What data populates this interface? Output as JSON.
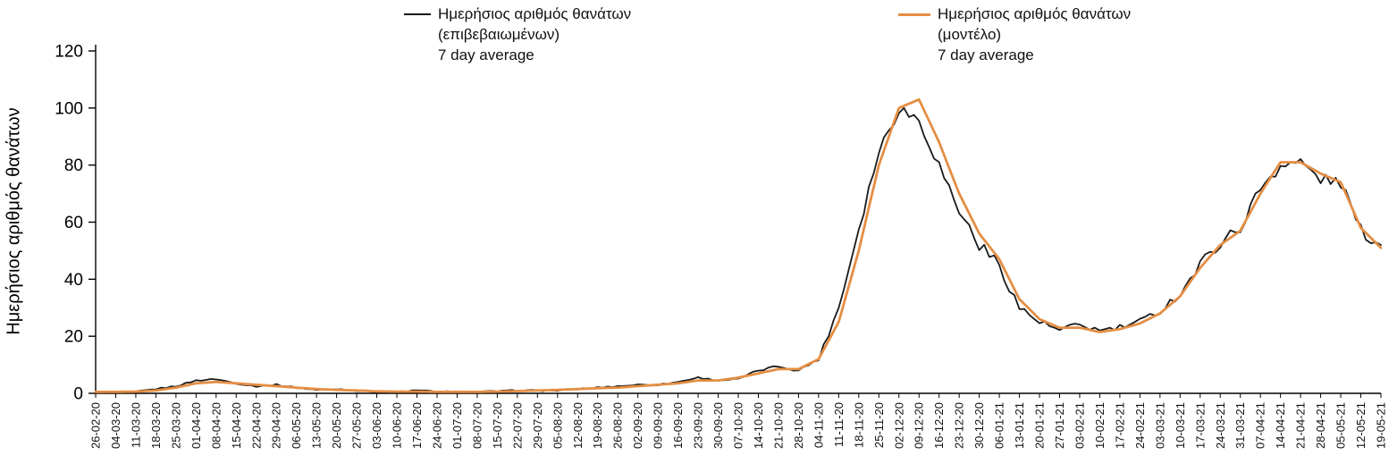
{
  "chart_data": {
    "type": "line",
    "title": "",
    "ylabel": "Ημερήσιος αριθμός θανάτων",
    "xlabel": "",
    "ylim": [
      0,
      120
    ],
    "yticks": [
      0,
      20,
      40,
      60,
      80,
      100,
      120
    ],
    "grid": false,
    "legend_position": "top",
    "categories": [
      "26-02-20",
      "04-03-20",
      "11-03-20",
      "18-03-20",
      "25-03-20",
      "01-04-20",
      "08-04-20",
      "15-04-20",
      "22-04-20",
      "29-04-20",
      "06-05-20",
      "13-05-20",
      "20-05-20",
      "27-05-20",
      "03-06-20",
      "10-06-20",
      "17-06-20",
      "24-06-20",
      "01-07-20",
      "08-07-20",
      "15-07-20",
      "22-07-20",
      "29-07-20",
      "05-08-20",
      "12-08-20",
      "19-08-20",
      "26-08-20",
      "02-09-20",
      "09-09-20",
      "16-09-20",
      "23-09-20",
      "30-09-20",
      "07-10-20",
      "14-10-20",
      "21-10-20",
      "28-10-20",
      "04-11-20",
      "11-11-20",
      "18-11-20",
      "25-11-20",
      "02-12-20",
      "09-12-20",
      "16-12-20",
      "23-12-20",
      "30-12-20",
      "06-01-21",
      "13-01-21",
      "20-01-21",
      "27-01-21",
      "03-02-21",
      "10-02-21",
      "17-02-21",
      "24-02-21",
      "03-03-21",
      "10-03-21",
      "17-03-21",
      "24-03-21",
      "31-03-21",
      "07-04-21",
      "14-04-21",
      "21-04-21",
      "28-04-21",
      "05-05-21",
      "12-05-21",
      "19-05-21"
    ],
    "series": [
      {
        "name": "Ημερήσιος αριθμός θανάτων (επιβεβαιωμένων) 7 day average",
        "key": "confirmed",
        "color": "#1a1a1a",
        "width": 1.8,
        "noise": true,
        "values": [
          0.3,
          0.3,
          0.5,
          1.5,
          2.5,
          4.5,
          5,
          3.5,
          2.5,
          3,
          2,
          1.2,
          1.5,
          1,
          0.6,
          0.5,
          1,
          0.6,
          0.5,
          0.5,
          0.7,
          1,
          1,
          1,
          1.5,
          2,
          2.5,
          3,
          3,
          4,
          5.5,
          4.5,
          5,
          8,
          9.5,
          8,
          12,
          30,
          58,
          85,
          100,
          96,
          80,
          64,
          52,
          45,
          30,
          25,
          22,
          24,
          22,
          23,
          25,
          29,
          35,
          45,
          53,
          58,
          72,
          80,
          81,
          75,
          74,
          57,
          52
        ]
      },
      {
        "name": "Ημερήσιος αριθμός θανάτων (μοντέλο) 7 day average",
        "key": "model",
        "color": "#E58E44",
        "width": 2.8,
        "noise": false,
        "values": [
          0.5,
          0.5,
          0.6,
          1,
          2,
          3.5,
          4,
          3.5,
          3,
          2.5,
          2,
          1.5,
          1.2,
          1,
          0.7,
          0.6,
          0.6,
          0.5,
          0.5,
          0.5,
          0.6,
          0.8,
          1,
          1.2,
          1.5,
          1.8,
          2,
          2.5,
          3,
          3.5,
          4.5,
          4.5,
          5.5,
          7,
          8.5,
          8.5,
          12,
          25,
          50,
          80,
          100,
          103,
          88,
          70,
          56,
          47,
          33,
          26,
          23,
          23,
          21.5,
          22.5,
          24.5,
          28,
          34,
          44,
          52,
          57,
          70,
          81,
          81,
          77,
          74,
          58,
          51
        ]
      }
    ]
  },
  "legend": {
    "confirmed": {
      "line1": "Ημερήσιος αριθμός θανάτων",
      "line2": "(επιβεβαιωμένων)",
      "line3": "7 day average"
    },
    "model": {
      "line1": "Ημερήσιος αριθμός θανάτων",
      "line2": "(μοντέλο)",
      "line3": "7 day average"
    }
  }
}
